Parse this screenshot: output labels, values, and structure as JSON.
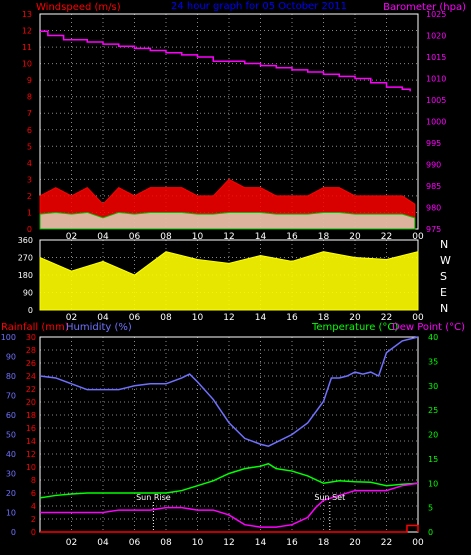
{
  "header": {
    "wind_label": "Windspeed (m/s)",
    "title": "24 hour graph for  05 October 2011",
    "baro_label": "Barometer (hpa)"
  },
  "colors": {
    "background": "#000000",
    "wind": "#ff0000",
    "gust_fill": "#00c000",
    "calm_fill": "#e0ffe0",
    "barometer": "#ff00ff",
    "title": "#0000ff",
    "direction": "#ffff00",
    "rain": "#ff0000",
    "humidity": "#7070ff",
    "temperature": "#00ff00",
    "dewpoint": "#ff00ff",
    "axis_text": "#ffffff",
    "grid": "#888888"
  },
  "bottom_header": {
    "rain_label": "Rainfall (mm)",
    "humidity_label": "Humidity (%)",
    "temp_label": "Temperature (°C)",
    "dew_label": "Dew Point (°C)"
  },
  "compass": [
    "N",
    "W",
    "S",
    "E",
    "N"
  ],
  "sun": {
    "rise_label": "Sun Rise",
    "set_label": "Sun Set"
  },
  "chart_data": [
    {
      "type": "line",
      "title": "24 hour graph for  05 October 2011",
      "x_tick_labels": [
        "02",
        "04",
        "06",
        "08",
        "10",
        "12",
        "14",
        "16",
        "18",
        "20",
        "22",
        "00"
      ],
      "left_axis": {
        "label": "Windspeed (m/s)",
        "ticks": [
          0,
          1,
          2,
          3,
          4,
          5,
          6,
          7,
          8,
          9,
          10,
          11,
          12,
          13
        ],
        "ylim": [
          0,
          13
        ]
      },
      "right_axis": {
        "label": "Barometer (hpa)",
        "ticks": [
          975,
          980,
          985,
          990,
          995,
          1000,
          1005,
          1010,
          1015,
          1020,
          1025
        ],
        "ylim": [
          975,
          1025
        ]
      },
      "series": [
        {
          "name": "Barometer (hpa)",
          "x": [
            0,
            0.5,
            1,
            1.5,
            2,
            3,
            4,
            5,
            6,
            7,
            8,
            9,
            10,
            11,
            12,
            13,
            14,
            15,
            16,
            17,
            18,
            19,
            20,
            21,
            22,
            23,
            23.5
          ],
          "values": [
            1021,
            1020,
            1020,
            1019,
            1019,
            1018.5,
            1018,
            1017.5,
            1017,
            1016.5,
            1016,
            1015.5,
            1015,
            1014,
            1014,
            1013.5,
            1013,
            1012.5,
            1012,
            1011.5,
            1011,
            1010.5,
            1010,
            1009,
            1008,
            1007.5,
            1007
          ]
        },
        {
          "name": "Windspeed (m/s)",
          "x": [
            0,
            1,
            2,
            3,
            4,
            5,
            6,
            7,
            8,
            9,
            10,
            11,
            12,
            13,
            14,
            15,
            16,
            17,
            18,
            19,
            20,
            21,
            22,
            23,
            23.8
          ],
          "values": [
            2,
            2.5,
            2,
            2.5,
            1.5,
            2.5,
            2,
            2.5,
            2.5,
            2.5,
            2,
            2,
            3,
            2.5,
            2.5,
            2,
            2,
            2,
            2.5,
            2.5,
            2,
            2,
            2,
            2,
            1.5
          ]
        }
      ]
    },
    {
      "type": "line",
      "x_tick_labels": [
        "02",
        "04",
        "06",
        "08",
        "10",
        "12",
        "14",
        "16",
        "18",
        "20",
        "22",
        "00"
      ],
      "left_axis": {
        "ticks": [
          0,
          90,
          180,
          270,
          360
        ],
        "ylim": [
          0,
          360
        ]
      },
      "series": [
        {
          "name": "Wind direction",
          "x": [
            0,
            2,
            4,
            6,
            8,
            10,
            12,
            14,
            16,
            18,
            20,
            22,
            24
          ],
          "values": [
            270,
            200,
            250,
            180,
            300,
            260,
            240,
            280,
            250,
            300,
            270,
            260,
            300
          ]
        }
      ]
    },
    {
      "type": "line",
      "x_tick_labels": [
        "02",
        "04",
        "06",
        "08",
        "10",
        "12",
        "14",
        "16",
        "18",
        "20",
        "22",
        "00"
      ],
      "rain_axis": {
        "label": "Rainfall (mm)",
        "ticks": [
          0,
          2,
          4,
          6,
          8,
          10,
          12,
          14,
          16,
          18,
          20,
          22,
          24,
          26,
          28,
          30
        ],
        "ylim": [
          0,
          30
        ]
      },
      "humidity_axis": {
        "label": "Humidity (%)",
        "ticks": [
          0,
          10,
          20,
          30,
          40,
          50,
          60,
          70,
          80,
          90,
          100
        ],
        "ylim": [
          0,
          100
        ]
      },
      "temp_axis": {
        "label": "Temperature (°C)",
        "ticks": [
          0,
          5,
          10,
          15,
          20,
          25,
          30,
          35,
          40
        ],
        "ylim": [
          0,
          40
        ]
      },
      "series": [
        {
          "name": "Humidity (%)",
          "x": [
            0,
            1,
            2,
            3,
            4,
            5,
            6,
            7,
            8,
            9,
            9.5,
            10,
            11,
            12,
            13,
            14,
            14.5,
            15,
            16,
            17,
            18,
            18.5,
            19,
            19.5,
            20,
            20.5,
            21,
            21.5,
            22,
            23,
            24
          ],
          "values": [
            80,
            79,
            76,
            73,
            73,
            73,
            75,
            76,
            76,
            79,
            81,
            77,
            68,
            56,
            48,
            45,
            44,
            46,
            50,
            56,
            67,
            79,
            79,
            80,
            82,
            81,
            82,
            80,
            92,
            98,
            100
          ]
        },
        {
          "name": "Temperature (°C)",
          "x": [
            0,
            1,
            2,
            3,
            4,
            5,
            6,
            7,
            8,
            9,
            10,
            11,
            12,
            13,
            14,
            14.5,
            15,
            16,
            17,
            18,
            19,
            20,
            21,
            22,
            23,
            24
          ],
          "values": [
            7,
            7.5,
            7.8,
            8,
            8,
            8,
            8,
            8,
            8,
            8.5,
            9.5,
            10.5,
            12,
            13,
            13.5,
            14,
            13,
            12.5,
            11.5,
            10,
            10.5,
            10.3,
            10.2,
            9.5,
            9.8,
            10
          ]
        },
        {
          "name": "Dew Point (°C)",
          "x": [
            0,
            1,
            2,
            3,
            4,
            5,
            6,
            7,
            8,
            9,
            10,
            11,
            12,
            13,
            14,
            15,
            16,
            17,
            17.5,
            18,
            18.5,
            19,
            20,
            21,
            22,
            23,
            24
          ],
          "values": [
            4,
            4,
            4,
            4,
            4,
            4.5,
            4.5,
            4.5,
            5,
            5,
            4.5,
            4.5,
            3.5,
            1.5,
            1,
            1,
            1.5,
            3,
            5,
            6.5,
            7,
            7.5,
            8.5,
            8.5,
            8.5,
            9.5,
            10
          ]
        },
        {
          "name": "Rainfall (mm)",
          "x": [
            0,
            23.2,
            23.3,
            23.9,
            24
          ],
          "values": [
            0,
            0,
            1,
            1,
            0
          ]
        }
      ],
      "markers": [
        {
          "label": "Sun Rise",
          "x": 7.2
        },
        {
          "label": "Sun Set",
          "x": 18.4
        }
      ]
    }
  ]
}
